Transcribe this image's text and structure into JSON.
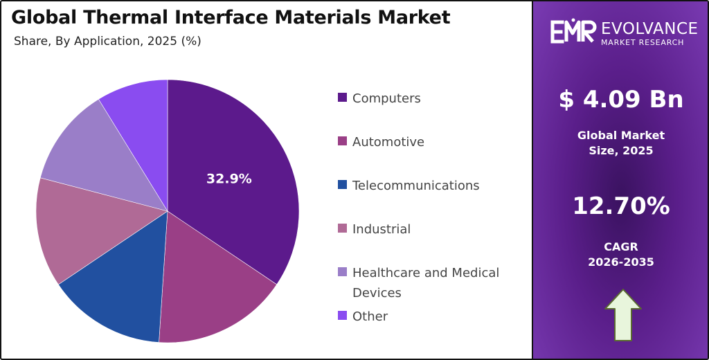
{
  "chart_data": {
    "type": "pie",
    "title": "Global Thermal Interface Materials Market",
    "subtitle": "Share, By Application, 2025 (%)",
    "legend_position": "right",
    "slices": [
      {
        "label": "Computers",
        "value": 32.9,
        "color": "#5c1a8c",
        "data_label": "32.9%"
      },
      {
        "label": "Automotive",
        "value": 15.9,
        "color": "#9a3f86"
      },
      {
        "label": "Telecommunications",
        "value": 13.9,
        "color": "#2150a0"
      },
      {
        "label": "Industrial",
        "value": 12.9,
        "color": "#b06a96"
      },
      {
        "label": "Healthcare and Medical Devices",
        "value": 11.6,
        "color": "#9a7ec8"
      },
      {
        "label": "Other",
        "value": 8.4,
        "color": "#8a4cf0"
      }
    ]
  },
  "brand": {
    "name": "EVOLVANCE",
    "tagline": "MARKET RESEARCH",
    "mark": "EMR"
  },
  "kpis": {
    "market_size_value": "$ 4.09 Bn",
    "market_size_label_1": "Global Market",
    "market_size_label_2": "Size, 2025",
    "cagr_value": "12.70%",
    "cagr_label_1": "CAGR",
    "cagr_label_2": "2026-2035"
  },
  "colors": {
    "panel_dark": "#3a1260",
    "panel_light": "#7a3bb3",
    "arrow_fill": "#e8f5dc",
    "arrow_stroke": "#5a6a30"
  }
}
